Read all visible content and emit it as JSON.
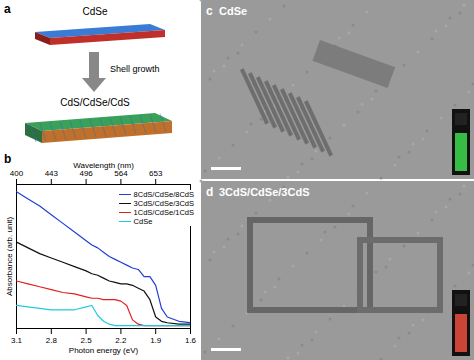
{
  "panels": {
    "a": {
      "label": "a",
      "top_text": "CdSe",
      "arrow_text": "Shell growth",
      "bottom_text": "CdS/CdSe/CdS"
    },
    "b": {
      "label": "b"
    },
    "c": {
      "label": "c",
      "title": "CdSe"
    },
    "d": {
      "label": "d",
      "title": "3CdS/CdSe/3CdS"
    }
  },
  "chart_data": {
    "type": "line",
    "xlabel": "Photon energy (eV)",
    "ylabel": "Absorbance (arb. unit)",
    "x2label": "Wavelength (nm)",
    "xlim": [
      3.1,
      1.6
    ],
    "xticks": [
      3.1,
      2.8,
      2.5,
      2.2,
      1.9,
      1.6
    ],
    "x2ticks": [
      {
        "value": 3.1,
        "label": "400"
      },
      {
        "value": 2.8,
        "label": "443"
      },
      {
        "value": 2.5,
        "label": "496"
      },
      {
        "value": 2.2,
        "label": "564"
      },
      {
        "value": 1.9,
        "label": "653"
      }
    ],
    "ylim": [
      0,
      1
    ],
    "tick_labels": "x",
    "legend": "top-right",
    "x": [
      3.1,
      3.0,
      2.9,
      2.8,
      2.7,
      2.6,
      2.5,
      2.45,
      2.4,
      2.35,
      2.3,
      2.25,
      2.2,
      2.15,
      2.1,
      2.05,
      2.0,
      1.95,
      1.9,
      1.85,
      1.8,
      1.7,
      1.6
    ],
    "series": [
      {
        "name": "8CdS/CdSe/8CdS",
        "color": "#1f3fd6",
        "values": [
          0.95,
          0.9,
          0.85,
          0.79,
          0.73,
          0.67,
          0.61,
          0.58,
          0.56,
          0.53,
          0.5,
          0.48,
          0.46,
          0.44,
          0.42,
          0.41,
          0.36,
          0.36,
          0.3,
          0.14,
          0.08,
          0.05,
          0.04
        ]
      },
      {
        "name": "3CdS/CdSe/3CdS",
        "color": "#111111",
        "values": [
          0.6,
          0.56,
          0.52,
          0.49,
          0.46,
          0.43,
          0.4,
          0.38,
          0.37,
          0.35,
          0.33,
          0.32,
          0.31,
          0.31,
          0.3,
          0.28,
          0.26,
          0.2,
          0.08,
          0.05,
          0.04,
          0.03,
          0.03
        ]
      },
      {
        "name": "1CdS/CdSe/1CdS",
        "color": "#e02020",
        "values": [
          0.33,
          0.31,
          0.29,
          0.27,
          0.25,
          0.24,
          0.22,
          0.21,
          0.21,
          0.2,
          0.2,
          0.2,
          0.19,
          0.16,
          0.06,
          0.03,
          0.02,
          0.02,
          0.02,
          0.02,
          0.02,
          0.02,
          0.02
        ]
      },
      {
        "name": "CdSe",
        "color": "#22c8e0",
        "values": [
          0.16,
          0.15,
          0.14,
          0.13,
          0.13,
          0.13,
          0.15,
          0.16,
          0.09,
          0.05,
          0.03,
          0.02,
          0.02,
          0.02,
          0.02,
          0.02,
          0.02,
          0.02,
          0.02,
          0.02,
          0.02,
          0.02,
          0.02
        ]
      }
    ]
  }
}
